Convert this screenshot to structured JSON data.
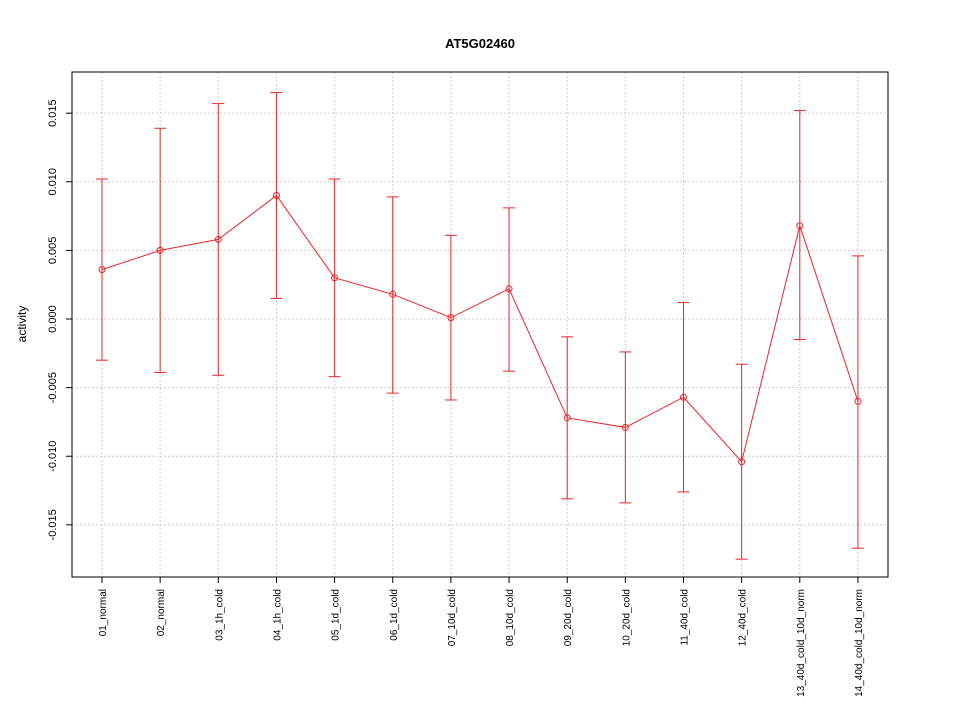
{
  "chart_data": {
    "type": "line",
    "title": "AT5G02460",
    "xlabel": "",
    "ylabel": "activity",
    "ylim": [
      -0.0188,
      0.018
    ],
    "yticks": [
      -0.015,
      -0.01,
      -0.005,
      0.0,
      0.005,
      0.01,
      0.015
    ],
    "ytick_labels": [
      "-0.015",
      "-0.010",
      "-0.005",
      "0.000",
      "0.005",
      "0.010",
      "0.015"
    ],
    "grid": true,
    "color": "#e8262b",
    "categories": [
      "01_normal",
      "02_normal",
      "03_1h_cold",
      "04_1h_cold",
      "05_1d_cold",
      "06_1d_cold",
      "07_10d_cold",
      "08_10d_cold",
      "09_20d_cold",
      "10_20d_cold",
      "11_40d_cold",
      "12_40d_cold",
      "13_40d_cold_10d_norm",
      "14_40d_cold_10d_norm"
    ],
    "values": [
      0.0036,
      0.005,
      0.0058,
      0.009,
      0.003,
      0.0018,
      0.0001,
      0.0022,
      -0.0072,
      -0.0079,
      -0.0057,
      -0.0104,
      0.0068,
      -0.006
    ],
    "upper": [
      0.0102,
      0.0139,
      0.0157,
      0.0165,
      0.0102,
      0.0089,
      0.0061,
      0.0081,
      -0.0013,
      -0.0024,
      0.0012,
      -0.0033,
      0.0152,
      0.0046
    ],
    "lower": [
      -0.003,
      -0.0039,
      -0.0041,
      0.0015,
      -0.0042,
      -0.0054,
      -0.0059,
      -0.0038,
      -0.0131,
      -0.0134,
      -0.0126,
      -0.0175,
      -0.0015,
      -0.0167
    ]
  }
}
